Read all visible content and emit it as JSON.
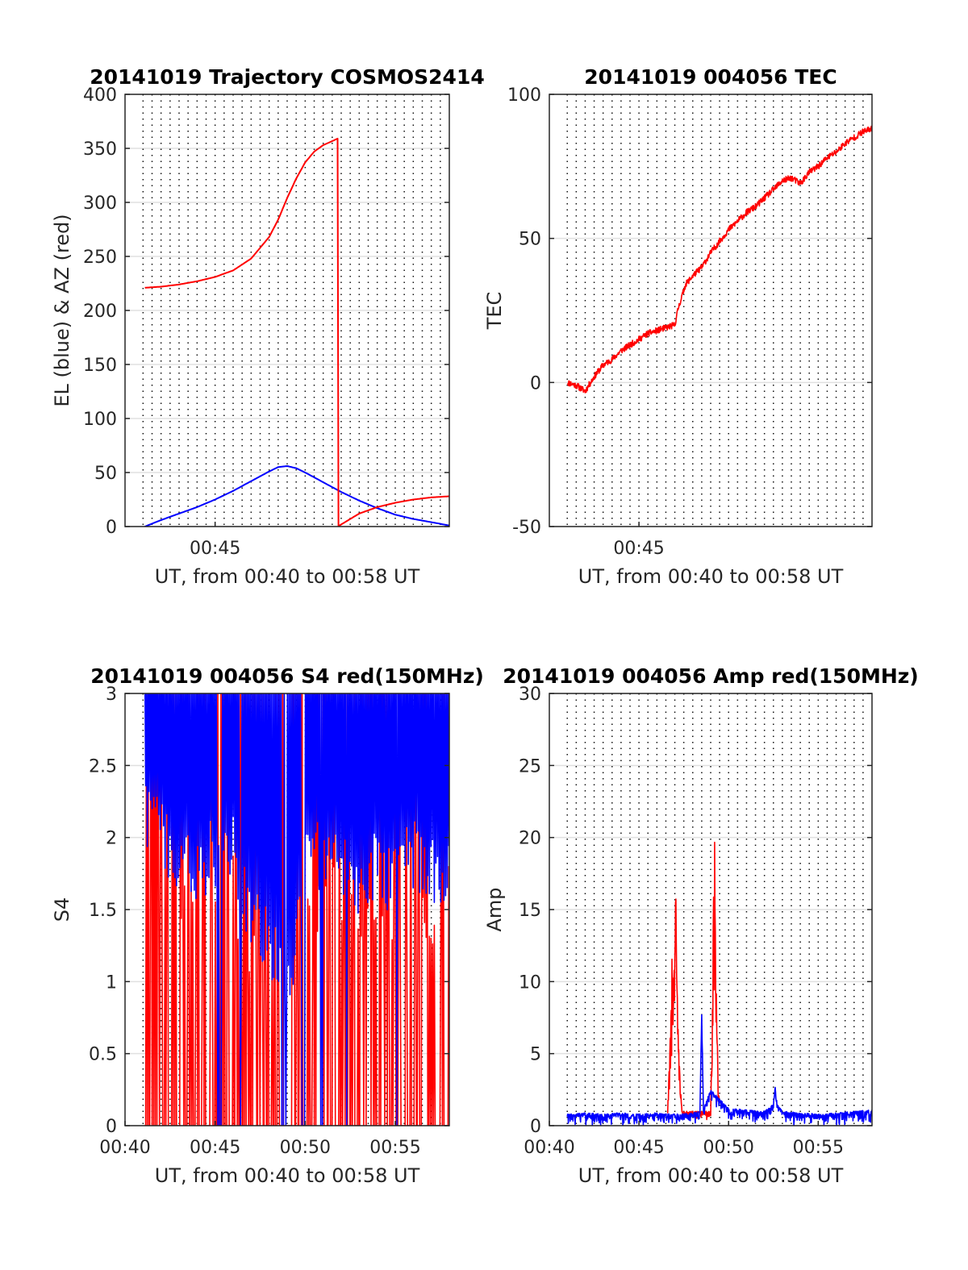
{
  "chart_data": [
    {
      "type": "line",
      "title": "20141019 Trajectory COSMOS2414",
      "xlabel": "UT, from 00:40 to 00:58 UT",
      "ylabel": "EL (blue) & AZ (red)",
      "xlim": [
        40,
        58
      ],
      "ylim": [
        0,
        400
      ],
      "xticks": [
        {
          "value": 45,
          "label": "00:45"
        }
      ],
      "yticks": [
        0,
        50,
        100,
        150,
        200,
        250,
        300,
        350,
        400
      ],
      "grid": {
        "horizontal": true,
        "vertical": "dotted, every 0.5 min"
      },
      "series": [
        {
          "role": "elevation",
          "color": "#0000ff",
          "x": [
            41.1,
            42,
            43,
            44,
            45,
            46,
            47,
            48,
            48.5,
            49,
            49.5,
            50,
            51,
            52,
            53,
            54,
            55,
            56,
            57,
            58
          ],
          "y": [
            0,
            6,
            12,
            18,
            25,
            33,
            42,
            51,
            55,
            56,
            54,
            50,
            41,
            32,
            24,
            17,
            11,
            7,
            4,
            1
          ]
        },
        {
          "role": "azimuth",
          "color": "#ff0000",
          "x": [
            41.1,
            42,
            43,
            44,
            45,
            46,
            47,
            48,
            48.5,
            49,
            49.5,
            50,
            50.5,
            51,
            51.8,
            51.81,
            52.5,
            53,
            54,
            55,
            56,
            57,
            58
          ],
          "y": [
            221,
            222,
            224,
            227,
            231,
            237,
            248,
            268,
            284,
            304,
            322,
            337,
            347,
            353,
            359,
            0,
            7,
            12,
            18,
            22,
            25,
            27,
            28
          ]
        }
      ]
    },
    {
      "type": "line",
      "title": "20141019 004056 TEC",
      "xlabel": "UT, from 00:40 to 00:58 UT",
      "ylabel": "TEC",
      "xlim": [
        40,
        58
      ],
      "ylim": [
        -50,
        100
      ],
      "xticks": [
        {
          "value": 45,
          "label": "00:45"
        }
      ],
      "yticks": [
        -50,
        0,
        50,
        100
      ],
      "grid": {
        "horizontal": true,
        "vertical": "dotted, every 0.5 min"
      },
      "series": [
        {
          "role": "TEC",
          "color": "#ff0000",
          "x": [
            41.0,
            41.5,
            42.0,
            42.5,
            43.0,
            43.5,
            44.0,
            44.5,
            45.0,
            45.5,
            46.0,
            46.5,
            47.0,
            47.2,
            47.6,
            48.0,
            48.5,
            49.0,
            49.5,
            50.0,
            50.5,
            51.0,
            51.5,
            52.0,
            52.5,
            53.0,
            53.5,
            54.0,
            54.5,
            55.0,
            55.5,
            56.0,
            56.5,
            57.0,
            57.5,
            58.0
          ],
          "y": [
            0,
            -1,
            -3,
            2,
            6,
            8,
            11,
            13,
            15,
            17,
            18,
            19,
            20,
            26,
            34,
            37,
            40,
            45,
            49,
            53,
            56,
            59,
            61,
            64,
            67,
            70,
            71,
            69,
            73,
            75,
            78,
            80,
            83,
            85,
            87,
            88
          ]
        }
      ]
    },
    {
      "type": "line",
      "title": "20141019 004056 S4 red(150MHz)",
      "xlabel": "UT, from 00:40 to 00:58 UT",
      "ylabel": "S4",
      "xlim": [
        40,
        58
      ],
      "ylim": [
        0,
        3
      ],
      "xticks": [
        {
          "value": 40,
          "label": "00:40"
        },
        {
          "value": 45,
          "label": "00:45"
        },
        {
          "value": 50,
          "label": "00:50"
        },
        {
          "value": 55,
          "label": "00:55"
        }
      ],
      "yticks": [
        {
          "value": 0,
          "label": "0"
        },
        {
          "value": 0.5,
          "label": "0.5"
        },
        {
          "value": 1,
          "label": "1"
        },
        {
          "value": 1.5,
          "label": "1.5"
        },
        {
          "value": 2,
          "label": "2"
        },
        {
          "value": 2.5,
          "label": "2.5"
        },
        {
          "value": 3,
          "label": "3"
        }
      ],
      "grid": {
        "horizontal": true,
        "vertical": "dotted, every 0.5 min"
      },
      "series": [
        {
          "role": "S4-150MHz",
          "color": "#ff0000",
          "x": [
            41.1,
            42,
            43,
            44,
            45,
            46,
            46.5,
            47,
            47.5,
            48,
            48.5,
            49,
            50,
            50.5,
            51,
            52,
            53,
            54,
            55,
            56,
            57,
            58
          ],
          "y": [
            1.9,
            1.7,
            1.6,
            1.5,
            1.6,
            1.8,
            1.3,
            1.1,
            1.4,
            1.2,
            1.0,
            0.9,
            1.6,
            1.3,
            1.7,
            1.5,
            1.4,
            1.6,
            1.5,
            1.6,
            1.5,
            1.6
          ]
        },
        {
          "role": "S4-400MHz",
          "color": "#0000ff",
          "x": [
            41.1,
            42,
            43,
            44,
            45,
            46,
            46.5,
            47,
            47.5,
            48,
            48.5,
            49,
            49.5,
            50,
            51,
            52,
            53,
            54,
            55,
            56,
            57,
            58
          ],
          "y": [
            2.2,
            2.0,
            1.9,
            1.8,
            1.9,
            2.0,
            1.6,
            1.5,
            1.4,
            1.3,
            1.1,
            0.9,
            1.2,
            1.8,
            1.9,
            1.8,
            1.7,
            1.8,
            1.7,
            1.9,
            1.8,
            1.7
          ]
        }
      ]
    },
    {
      "type": "line",
      "title": "20141019 004056 Amp red(150MHz)",
      "xlabel": "UT, from 00:40 to 00:58 UT",
      "ylabel": "Amp",
      "xlim": [
        40,
        58
      ],
      "ylim": [
        0,
        30
      ],
      "xticks": [
        {
          "value": 40,
          "label": "00:40"
        },
        {
          "value": 45,
          "label": "00:45"
        },
        {
          "value": 50,
          "label": "00:50"
        },
        {
          "value": 55,
          "label": "00:55"
        }
      ],
      "yticks": [
        0,
        5,
        10,
        15,
        20,
        25,
        30
      ],
      "grid": {
        "horizontal": true,
        "vertical": "dotted, every 0.5 min"
      },
      "series": [
        {
          "role": "amp-150MHz",
          "color": "#ff0000",
          "x": [
            46.6,
            46.7,
            46.8,
            46.85,
            46.9,
            47.0,
            47.05,
            47.1,
            47.2,
            47.3,
            47.4,
            49.0,
            49.1,
            49.15,
            49.2,
            49.25,
            49.3,
            49.35,
            49.4,
            49.5
          ],
          "y": [
            1,
            5,
            8.5,
            13,
            9,
            12,
            17.3,
            11,
            6,
            3,
            1,
            1,
            9,
            15,
            22.4,
            16,
            12,
            8,
            4,
            1
          ]
        },
        {
          "role": "amp-400MHz",
          "color": "#0000ff",
          "x": [
            41.0,
            42.0,
            43.0,
            44.0,
            45.0,
            46.0,
            47.0,
            48.0,
            48.4,
            48.5,
            48.6,
            49.0,
            50.0,
            51.0,
            52.0,
            52.5,
            52.6,
            52.7,
            53.0,
            54.0,
            55.0,
            56.0,
            57.0,
            58.0
          ],
          "y": [
            0.8,
            0.9,
            0.8,
            0.9,
            0.8,
            0.9,
            0.8,
            0.9,
            1.0,
            7.8,
            1.2,
            2.5,
            1.2,
            1.1,
            1.0,
            1.5,
            2.8,
            1.5,
            1.0,
            0.9,
            0.8,
            0.9,
            1.0,
            1.1
          ]
        }
      ]
    }
  ]
}
